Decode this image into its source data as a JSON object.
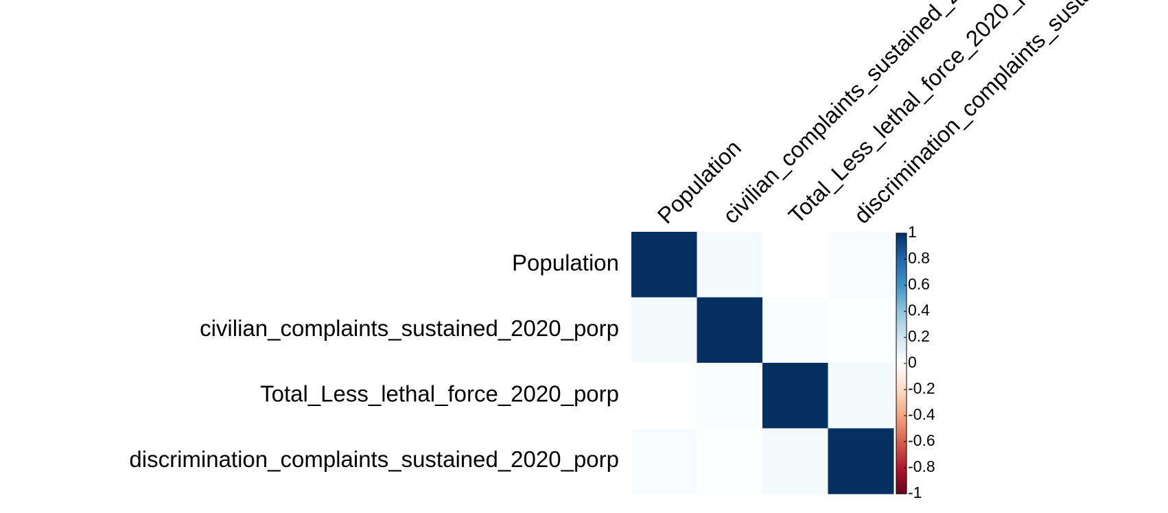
{
  "chart_data": {
    "type": "heatmap",
    "title": "",
    "xlabel": "",
    "ylabel": "",
    "variables": [
      "Population",
      "civilian_complaints_sustained_2020_porp",
      "Total_Less_lethal_force_2020_porp",
      "discrimination_complaints_sustained_2020_porp"
    ],
    "matrix": [
      [
        1.0,
        0.05,
        0.0,
        0.03
      ],
      [
        0.05,
        1.0,
        0.02,
        0.01
      ],
      [
        0.0,
        0.02,
        1.0,
        0.05
      ],
      [
        0.03,
        0.01,
        0.05,
        1.0
      ]
    ],
    "color_scale": {
      "range": [
        -1,
        1
      ],
      "ticks": [
        "1",
        "0.8",
        "0.6",
        "0.4",
        "0.2",
        "0",
        "-0.2",
        "-0.4",
        "-0.6",
        "-0.8",
        "-1"
      ],
      "colors_low_to_high": [
        "#67001F",
        "#B2182B",
        "#D6604D",
        "#F4A582",
        "#FDDBC7",
        "#FFFFFF",
        "#D1E5F0",
        "#92C5DE",
        "#4393C3",
        "#2166AC",
        "#053061"
      ]
    },
    "grid": false,
    "legend_position": "right"
  }
}
